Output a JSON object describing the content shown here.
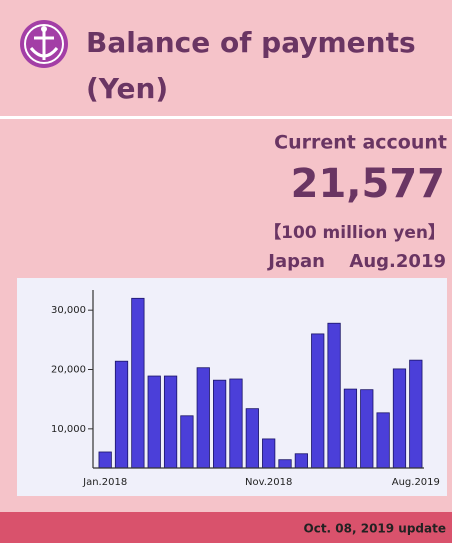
{
  "header": {
    "title_line1": "Balance of payments",
    "title_line2": "(Yen)"
  },
  "summary": {
    "label": "Current account",
    "value": "21,577",
    "unit": "【100 million yen】",
    "region": "Japan",
    "period": "Aug.2019"
  },
  "footer": {
    "update": "Oct. 08, 2019 update"
  },
  "chart_data": {
    "type": "bar",
    "categories": [
      "Jan.2018",
      null,
      null,
      null,
      null,
      null,
      null,
      null,
      null,
      null,
      "Nov.2018",
      null,
      null,
      null,
      null,
      null,
      null,
      null,
      null,
      "Aug.2019"
    ],
    "values": [
      6100,
      21400,
      32000,
      18900,
      18900,
      12200,
      20300,
      18200,
      18400,
      13400,
      8300,
      4800,
      5800,
      26000,
      27800,
      16700,
      16600,
      12700,
      20100,
      21577
    ],
    "color": "#4b3fd9",
    "ylim": [
      3400,
      33400
    ],
    "yticks": [
      {
        "value": 10000,
        "label": "10,000"
      },
      {
        "value": 20000,
        "label": "20,000"
      },
      {
        "value": 30000,
        "label": "30,000"
      }
    ]
  }
}
